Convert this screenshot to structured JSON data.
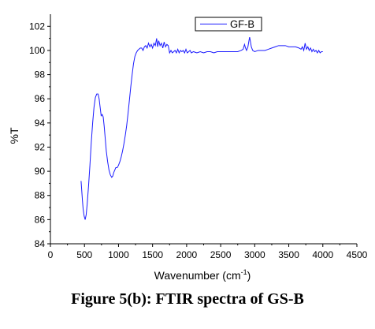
{
  "caption": "Figure 5(b): FTIR spectra of GS-B",
  "chart_data": {
    "type": "line",
    "xlabel": "Wavenumber (cm⁻¹)",
    "xlabel_main": "Wavenumber (cm",
    "xlabel_sup": "-1",
    "xlabel_close": ")",
    "ylabel": "%T",
    "xlim": [
      0,
      4500
    ],
    "ylim": [
      84,
      103
    ],
    "xticks": [
      0,
      500,
      1000,
      1500,
      2000,
      2500,
      3000,
      3500,
      4000,
      4500
    ],
    "yticks": [
      84,
      86,
      88,
      90,
      92,
      94,
      96,
      98,
      100,
      102
    ],
    "grid": false,
    "legend_position": "top-center",
    "color": "#1a1aff",
    "series": [
      {
        "name": "GF-B",
        "points": [
          [
            450,
            89.2
          ],
          [
            460,
            88.4
          ],
          [
            470,
            87.6
          ],
          [
            480,
            86.9
          ],
          [
            495,
            86.3
          ],
          [
            510,
            86.0
          ],
          [
            525,
            86.4
          ],
          [
            540,
            87.3
          ],
          [
            560,
            88.8
          ],
          [
            580,
            90.5
          ],
          [
            600,
            92.4
          ],
          [
            620,
            94.0
          ],
          [
            640,
            95.3
          ],
          [
            660,
            96.1
          ],
          [
            680,
            96.4
          ],
          [
            700,
            96.4
          ],
          [
            715,
            96.0
          ],
          [
            730,
            95.3
          ],
          [
            745,
            94.6
          ],
          [
            760,
            94.7
          ],
          [
            775,
            94.5
          ],
          [
            790,
            93.7
          ],
          [
            805,
            92.7
          ],
          [
            820,
            91.7
          ],
          [
            840,
            90.8
          ],
          [
            860,
            90.1
          ],
          [
            880,
            89.7
          ],
          [
            900,
            89.5
          ],
          [
            915,
            89.6
          ],
          [
            930,
            89.9
          ],
          [
            945,
            90.1
          ],
          [
            960,
            90.3
          ],
          [
            980,
            90.3
          ],
          [
            1000,
            90.5
          ],
          [
            1020,
            90.8
          ],
          [
            1040,
            91.2
          ],
          [
            1060,
            91.7
          ],
          [
            1080,
            92.3
          ],
          [
            1100,
            93.0
          ],
          [
            1120,
            93.8
          ],
          [
            1140,
            94.8
          ],
          [
            1160,
            95.9
          ],
          [
            1180,
            97.0
          ],
          [
            1200,
            98.0
          ],
          [
            1220,
            98.9
          ],
          [
            1240,
            99.5
          ],
          [
            1260,
            99.8
          ],
          [
            1280,
            100.0
          ],
          [
            1300,
            100.1
          ],
          [
            1320,
            100.2
          ],
          [
            1340,
            100.2
          ],
          [
            1360,
            100.0
          ],
          [
            1380,
            100.3
          ],
          [
            1400,
            100.4
          ],
          [
            1420,
            100.2
          ],
          [
            1440,
            100.6
          ],
          [
            1460,
            100.3
          ],
          [
            1480,
            100.5
          ],
          [
            1500,
            100.2
          ],
          [
            1520,
            100.6
          ],
          [
            1540,
            100.4
          ],
          [
            1560,
            101.0
          ],
          [
            1575,
            100.3
          ],
          [
            1590,
            100.8
          ],
          [
            1610,
            100.4
          ],
          [
            1630,
            100.6
          ],
          [
            1650,
            100.2
          ],
          [
            1670,
            100.7
          ],
          [
            1690,
            100.3
          ],
          [
            1710,
            100.5
          ],
          [
            1730,
            100.4
          ],
          [
            1750,
            99.8
          ],
          [
            1770,
            100.0
          ],
          [
            1790,
            99.8
          ],
          [
            1810,
            99.9
          ],
          [
            1830,
            100.0
          ],
          [
            1850,
            99.8
          ],
          [
            1870,
            100.1
          ],
          [
            1890,
            99.8
          ],
          [
            1910,
            100.0
          ],
          [
            1930,
            99.9
          ],
          [
            1950,
            100.0
          ],
          [
            1970,
            99.8
          ],
          [
            1990,
            100.1
          ],
          [
            2010,
            99.8
          ],
          [
            2030,
            99.9
          ],
          [
            2050,
            100.0
          ],
          [
            2070,
            99.8
          ],
          [
            2100,
            99.9
          ],
          [
            2150,
            99.8
          ],
          [
            2200,
            99.9
          ],
          [
            2250,
            99.8
          ],
          [
            2300,
            99.9
          ],
          [
            2350,
            99.9
          ],
          [
            2400,
            99.8
          ],
          [
            2450,
            99.9
          ],
          [
            2500,
            99.9
          ],
          [
            2550,
            99.9
          ],
          [
            2600,
            99.9
          ],
          [
            2650,
            99.9
          ],
          [
            2700,
            99.9
          ],
          [
            2750,
            99.9
          ],
          [
            2800,
            100.0
          ],
          [
            2830,
            100.1
          ],
          [
            2850,
            100.5
          ],
          [
            2865,
            100.2
          ],
          [
            2880,
            100.0
          ],
          [
            2900,
            100.3
          ],
          [
            2915,
            100.8
          ],
          [
            2925,
            101.1
          ],
          [
            2935,
            100.8
          ],
          [
            2950,
            100.3
          ],
          [
            2970,
            100.0
          ],
          [
            3000,
            99.9
          ],
          [
            3050,
            100.0
          ],
          [
            3100,
            100.0
          ],
          [
            3150,
            100.0
          ],
          [
            3200,
            100.1
          ],
          [
            3250,
            100.2
          ],
          [
            3300,
            100.3
          ],
          [
            3350,
            100.4
          ],
          [
            3400,
            100.4
          ],
          [
            3450,
            100.4
          ],
          [
            3500,
            100.3
          ],
          [
            3550,
            100.3
          ],
          [
            3600,
            100.3
          ],
          [
            3650,
            100.2
          ],
          [
            3680,
            100.1
          ],
          [
            3700,
            100.3
          ],
          [
            3720,
            100.0
          ],
          [
            3740,
            100.6
          ],
          [
            3760,
            100.1
          ],
          [
            3780,
            100.3
          ],
          [
            3800,
            100.0
          ],
          [
            3820,
            100.2
          ],
          [
            3840,
            99.9
          ],
          [
            3860,
            100.1
          ],
          [
            3880,
            99.9
          ],
          [
            3900,
            100.0
          ],
          [
            3920,
            99.8
          ],
          [
            3940,
            100.0
          ],
          [
            3960,
            99.8
          ],
          [
            3980,
            99.9
          ],
          [
            4000,
            99.9
          ]
        ]
      }
    ]
  }
}
